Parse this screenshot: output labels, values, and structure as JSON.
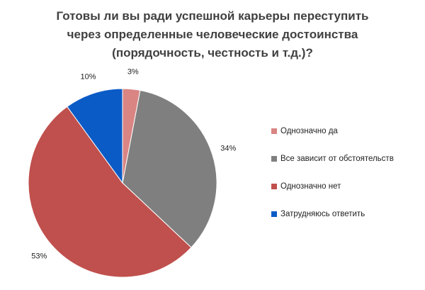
{
  "chart_data": {
    "type": "pie",
    "title": [
      "Готовы ли вы ради успешной карьеры переступить",
      "через определенные человеческие достоинства",
      "(порядочность, честность и т.д.)?"
    ],
    "categories": [
      "Однозначно да",
      "Все зависит от обстоятельств",
      "Однозначно нет",
      "Затрудняюсь ответить"
    ],
    "values": [
      3,
      34,
      53,
      10
    ],
    "value_labels": [
      "3%",
      "34%",
      "53%",
      "10%"
    ],
    "colors": [
      "#d98584",
      "#7f7f7f",
      "#c0504d",
      "#0b5bc6"
    ]
  }
}
